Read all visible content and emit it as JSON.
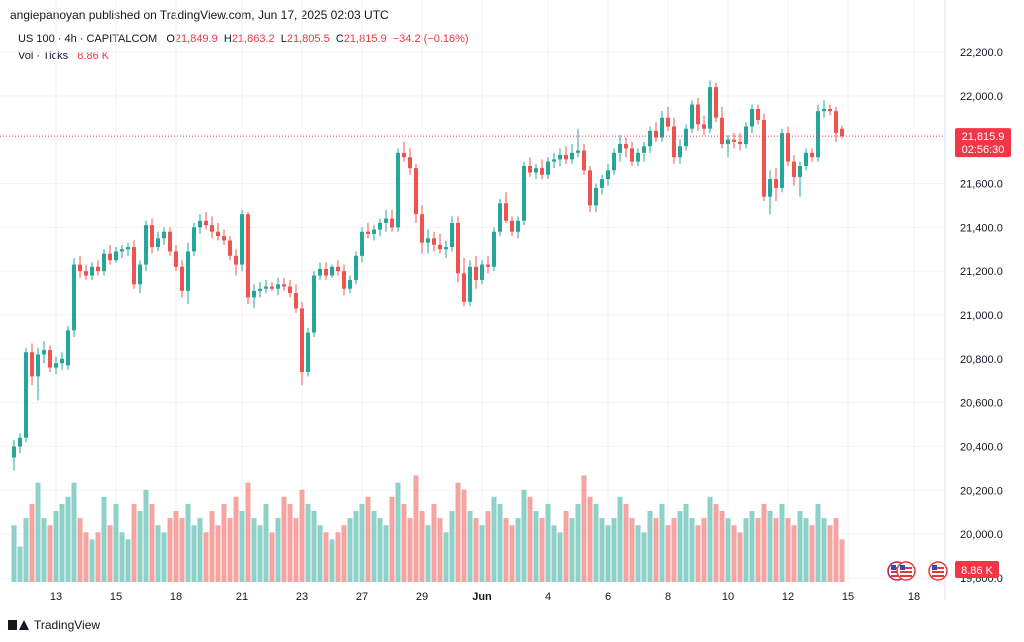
{
  "publisher": "angiepanoyan published on TradingView.com, Jun 17, 2025 02:03 UTC",
  "legend": {
    "symbol": "US 100 · 4h · CAPITALCOM",
    "o_label": "O",
    "o": "21,849.9",
    "h_label": "H",
    "h": "21,863.2",
    "l_label": "L",
    "l": "21,805.5",
    "c_label": "C",
    "c": "21,815.9",
    "change": "−34.2 (−0.16%)",
    "vol_label": "Vol · Ticks",
    "vol_value": "8.86 K"
  },
  "price_tag": {
    "price": "21,815.9",
    "countdown": "02:56:30"
  },
  "vol_tag": "8.86 K",
  "footer": "TradingView",
  "colors": {
    "up": "#26a69a",
    "down": "#ef5350",
    "vol_up": "#8ed1c9",
    "vol_down": "#f5a4a2",
    "tag": "#f23645"
  },
  "chart_data": {
    "type": "candlestick",
    "symbol": "US 100",
    "interval": "4h",
    "y_ticks": [
      19800,
      20000,
      20200,
      20400,
      20600,
      20800,
      21000,
      21200,
      21400,
      21600,
      21800,
      22000,
      22200
    ],
    "y_tick_labels": [
      "19,800.0",
      "20,000.0",
      "20,200.0",
      "20,400.0",
      "20,600.0",
      "20,800.0",
      "21,000.0",
      "21,200.0",
      "21,400.0",
      "21,600.0",
      "21,800.0",
      "22,000.0",
      "22,200.0"
    ],
    "x_ticks": [
      {
        "label": "13",
        "bar": 7
      },
      {
        "label": "15",
        "bar": 17
      },
      {
        "label": "18",
        "bar": 27
      },
      {
        "label": "21",
        "bar": 38
      },
      {
        "label": "23",
        "bar": 48
      },
      {
        "label": "27",
        "bar": 58
      },
      {
        "label": "29",
        "bar": 68
      },
      {
        "label": "Jun",
        "bar": 78
      },
      {
        "label": "4",
        "bar": 89
      },
      {
        "label": "6",
        "bar": 99
      },
      {
        "label": "8",
        "bar": 109
      },
      {
        "label": "10",
        "bar": 119
      },
      {
        "label": "12",
        "bar": 129
      },
      {
        "label": "15",
        "bar": 139
      },
      {
        "label": "18",
        "bar": 150
      }
    ],
    "last_price": 21815.9,
    "candles": [
      [
        20350,
        20430,
        20290,
        20400,
        40
      ],
      [
        20400,
        20460,
        20370,
        20440,
        25
      ],
      [
        20440,
        20850,
        20420,
        20830,
        45
      ],
      [
        20830,
        20870,
        20680,
        20720,
        55
      ],
      [
        20720,
        20850,
        20610,
        20820,
        70
      ],
      [
        20820,
        20880,
        20780,
        20840,
        45
      ],
      [
        20840,
        20860,
        20740,
        20760,
        40
      ],
      [
        20760,
        20810,
        20730,
        20780,
        50
      ],
      [
        20780,
        20830,
        20750,
        20800,
        55
      ],
      [
        20770,
        20950,
        20750,
        20930,
        60
      ],
      [
        20930,
        21260,
        20900,
        21230,
        70
      ],
      [
        21230,
        21270,
        21170,
        21200,
        45
      ],
      [
        21200,
        21230,
        21160,
        21180,
        35
      ],
      [
        21180,
        21240,
        21160,
        21220,
        30
      ],
      [
        21220,
        21250,
        21180,
        21200,
        35
      ],
      [
        21200,
        21300,
        21180,
        21280,
        60
      ],
      [
        21280,
        21320,
        21230,
        21250,
        40
      ],
      [
        21250,
        21310,
        21240,
        21290,
        55
      ],
      [
        21290,
        21320,
        21260,
        21300,
        35
      ],
      [
        21300,
        21330,
        21270,
        21310,
        30
      ],
      [
        21310,
        21340,
        21120,
        21140,
        55
      ],
      [
        21140,
        21250,
        21100,
        21230,
        50
      ],
      [
        21230,
        21430,
        21200,
        21410,
        65
      ],
      [
        21410,
        21440,
        21280,
        21310,
        55
      ],
      [
        21310,
        21380,
        21290,
        21350,
        40
      ],
      [
        21350,
        21400,
        21320,
        21380,
        35
      ],
      [
        21380,
        21400,
        21270,
        21290,
        45
      ],
      [
        21290,
        21320,
        21200,
        21220,
        50
      ],
      [
        21220,
        21250,
        21080,
        21110,
        45
      ],
      [
        21110,
        21330,
        21050,
        21290,
        55
      ],
      [
        21290,
        21420,
        21270,
        21400,
        40
      ],
      [
        21400,
        21460,
        21370,
        21430,
        45
      ],
      [
        21430,
        21470,
        21390,
        21410,
        35
      ],
      [
        21410,
        21450,
        21350,
        21380,
        50
      ],
      [
        21380,
        21420,
        21340,
        21360,
        40
      ],
      [
        21360,
        21390,
        21320,
        21340,
        55
      ],
      [
        21340,
        21360,
        21250,
        21270,
        45
      ],
      [
        21270,
        21300,
        21180,
        21230,
        60
      ],
      [
        21230,
        21480,
        21200,
        21460,
        50
      ],
      [
        21460,
        21470,
        21050,
        21080,
        70
      ],
      [
        21080,
        21140,
        21030,
        21110,
        45
      ],
      [
        21110,
        21150,
        21080,
        21120,
        40
      ],
      [
        21120,
        21160,
        21100,
        21130,
        55
      ],
      [
        21130,
        21150,
        21110,
        21120,
        35
      ],
      [
        21120,
        21170,
        21090,
        21140,
        45
      ],
      [
        21140,
        21170,
        21110,
        21130,
        60
      ],
      [
        21130,
        21160,
        21080,
        21100,
        55
      ],
      [
        21100,
        21140,
        21010,
        21030,
        45
      ],
      [
        21030,
        21060,
        20680,
        20740,
        65
      ],
      [
        20740,
        20940,
        20720,
        20920,
        55
      ],
      [
        20920,
        21200,
        20900,
        21180,
        50
      ],
      [
        21180,
        21240,
        21160,
        21210,
        40
      ],
      [
        21210,
        21240,
        21160,
        21180,
        35
      ],
      [
        21180,
        21230,
        21170,
        21220,
        30
      ],
      [
        21220,
        21250,
        21180,
        21200,
        35
      ],
      [
        21200,
        21230,
        21090,
        21120,
        40
      ],
      [
        21120,
        21180,
        21100,
        21160,
        45
      ],
      [
        21160,
        21290,
        21140,
        21270,
        50
      ],
      [
        21270,
        21400,
        21240,
        21380,
        55
      ],
      [
        21380,
        21420,
        21350,
        21370,
        60
      ],
      [
        21370,
        21410,
        21340,
        21390,
        50
      ],
      [
        21390,
        21440,
        21360,
        21420,
        45
      ],
      [
        21420,
        21480,
        21380,
        21440,
        40
      ],
      [
        21440,
        21480,
        21380,
        21400,
        60
      ],
      [
        21400,
        21760,
        21380,
        21740,
        70
      ],
      [
        21740,
        21790,
        21700,
        21720,
        55
      ],
      [
        21720,
        21760,
        21640,
        21670,
        45
      ],
      [
        21670,
        21690,
        21420,
        21460,
        75
      ],
      [
        21460,
        21500,
        21280,
        21330,
        50
      ],
      [
        21330,
        21390,
        21280,
        21350,
        40
      ],
      [
        21350,
        21380,
        21290,
        21320,
        55
      ],
      [
        21320,
        21370,
        21280,
        21300,
        45
      ],
      [
        21300,
        21340,
        21260,
        21310,
        35
      ],
      [
        21310,
        21450,
        21290,
        21420,
        50
      ],
      [
        21420,
        21450,
        21150,
        21190,
        70
      ],
      [
        21190,
        21260,
        21040,
        21060,
        65
      ],
      [
        21060,
        21250,
        21040,
        21220,
        50
      ],
      [
        21220,
        21270,
        21120,
        21160,
        45
      ],
      [
        21160,
        21250,
        21140,
        21230,
        40
      ],
      [
        21230,
        21270,
        21190,
        21220,
        50
      ],
      [
        21220,
        21400,
        21200,
        21380,
        60
      ],
      [
        21380,
        21530,
        21360,
        21510,
        55
      ],
      [
        21510,
        21560,
        21420,
        21430,
        45
      ],
      [
        21430,
        21450,
        21360,
        21380,
        40
      ],
      [
        21380,
        21450,
        21350,
        21430,
        45
      ],
      [
        21430,
        21700,
        21410,
        21680,
        65
      ],
      [
        21680,
        21720,
        21630,
        21650,
        60
      ],
      [
        21650,
        21690,
        21620,
        21670,
        50
      ],
      [
        21670,
        21710,
        21620,
        21640,
        45
      ],
      [
        21640,
        21720,
        21620,
        21700,
        55
      ],
      [
        21700,
        21740,
        21670,
        21710,
        40
      ],
      [
        21710,
        21760,
        21680,
        21730,
        35
      ],
      [
        21730,
        21770,
        21690,
        21710,
        50
      ],
      [
        21710,
        21780,
        21690,
        21740,
        45
      ],
      [
        21740,
        21850,
        21720,
        21750,
        55
      ],
      [
        21750,
        21780,
        21640,
        21660,
        75
      ],
      [
        21660,
        21680,
        21470,
        21500,
        60
      ],
      [
        21500,
        21600,
        21470,
        21580,
        55
      ],
      [
        21580,
        21640,
        21550,
        21620,
        45
      ],
      [
        21620,
        21690,
        21590,
        21660,
        40
      ],
      [
        21660,
        21760,
        21640,
        21740,
        45
      ],
      [
        21740,
        21820,
        21700,
        21780,
        60
      ],
      [
        21780,
        21810,
        21720,
        21760,
        55
      ],
      [
        21760,
        21790,
        21680,
        21700,
        45
      ],
      [
        21700,
        21760,
        21680,
        21740,
        40
      ],
      [
        21740,
        21790,
        21700,
        21770,
        35
      ],
      [
        21770,
        21860,
        21740,
        21840,
        50
      ],
      [
        21840,
        21880,
        21790,
        21810,
        45
      ],
      [
        21810,
        21930,
        21790,
        21900,
        55
      ],
      [
        21900,
        21950,
        21840,
        21860,
        40
      ],
      [
        21860,
        21900,
        21690,
        21720,
        45
      ],
      [
        21720,
        21800,
        21690,
        21770,
        50
      ],
      [
        21770,
        21870,
        21750,
        21850,
        55
      ],
      [
        21850,
        21980,
        21830,
        21960,
        45
      ],
      [
        21960,
        21990,
        21840,
        21870,
        40
      ],
      [
        21870,
        21910,
        21820,
        21850,
        45
      ],
      [
        21850,
        22070,
        21830,
        22040,
        60
      ],
      [
        22040,
        22060,
        21880,
        21900,
        55
      ],
      [
        21900,
        21950,
        21760,
        21780,
        50
      ],
      [
        21780,
        21820,
        21720,
        21800,
        45
      ],
      [
        21800,
        21830,
        21760,
        21790,
        40
      ],
      [
        21790,
        21830,
        21750,
        21780,
        35
      ],
      [
        21780,
        21880,
        21760,
        21860,
        45
      ],
      [
        21860,
        21960,
        21830,
        21940,
        50
      ],
      [
        21940,
        21960,
        21870,
        21890,
        45
      ],
      [
        21890,
        21920,
        21520,
        21540,
        55
      ],
      [
        21540,
        21660,
        21460,
        21620,
        50
      ],
      [
        21620,
        21670,
        21520,
        21580,
        45
      ],
      [
        21580,
        21850,
        21560,
        21830,
        55
      ],
      [
        21830,
        21860,
        21680,
        21700,
        45
      ],
      [
        21700,
        21730,
        21590,
        21630,
        40
      ],
      [
        21630,
        21700,
        21540,
        21680,
        50
      ],
      [
        21680,
        21760,
        21660,
        21740,
        45
      ],
      [
        21740,
        21760,
        21700,
        21720,
        40
      ],
      [
        21720,
        21960,
        21700,
        21930,
        55
      ],
      [
        21930,
        21980,
        21900,
        21940,
        45
      ],
      [
        21940,
        21960,
        21910,
        21930,
        40
      ],
      [
        21930,
        21950,
        21790,
        21830,
        45
      ],
      [
        21849.9,
        21863.2,
        21805.5,
        21815.9,
        30
      ]
    ],
    "volume_scale_max": 100
  }
}
